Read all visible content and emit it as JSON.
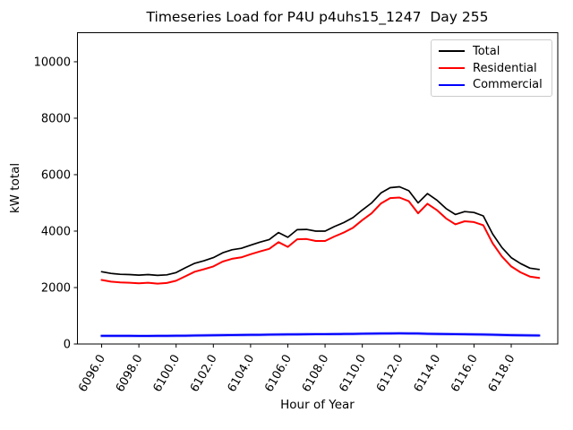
{
  "title": "Timeseries Load for P4U p4uhs15_1247  Day 255",
  "chart_data": {
    "type": "line",
    "title": "Timeseries Load for P4U p4uhs15_1247  Day 255",
    "xlabel": "Hour of Year",
    "ylabel": "kW total",
    "xlim": [
      6094.7,
      6120.5
    ],
    "ylim": [
      0,
      11030
    ],
    "grid": false,
    "legend_position": "upper right",
    "xtick_values": [
      6096,
      6098,
      6100,
      6102,
      6104,
      6106,
      6108,
      6110,
      6112,
      6114,
      6116,
      6118
    ],
    "xtick_labels": [
      "6096.0",
      "6098.0",
      "6100.0",
      "6102.0",
      "6104.0",
      "6106.0",
      "6108.0",
      "6110.0",
      "6112.0",
      "6114.0",
      "6116.0",
      "6118.0"
    ],
    "ytick_values": [
      0,
      2000,
      4000,
      6000,
      8000,
      10000
    ],
    "ytick_labels": [
      "0",
      "2000",
      "4000",
      "6000",
      "8000",
      "10000"
    ],
    "x": [
      6096.0,
      6096.5,
      6097.0,
      6097.5,
      6098.0,
      6098.5,
      6099.0,
      6099.5,
      6100.0,
      6100.5,
      6101.0,
      6101.5,
      6102.0,
      6102.5,
      6103.0,
      6103.5,
      6104.0,
      6104.5,
      6105.0,
      6105.5,
      6106.0,
      6106.5,
      6107.0,
      6107.5,
      6108.0,
      6108.5,
      6109.0,
      6109.5,
      6110.0,
      6110.5,
      6111.0,
      6111.5,
      6112.0,
      6112.5,
      6113.0,
      6113.5,
      6114.0,
      6114.5,
      6115.0,
      6115.5,
      6116.0,
      6116.5,
      6117.0,
      6117.5,
      6118.0,
      6118.5,
      6119.0,
      6119.5
    ],
    "series": [
      {
        "name": "Total",
        "color": "#000000",
        "values": [
          2560,
          2500,
          2470,
          2460,
          2440,
          2460,
          2430,
          2450,
          2530,
          2700,
          2860,
          2950,
          3060,
          3230,
          3340,
          3390,
          3500,
          3610,
          3700,
          3950,
          3780,
          4050,
          4060,
          4000,
          4000,
          4160,
          4300,
          4480,
          4750,
          5000,
          5350,
          5540,
          5570,
          5430,
          5000,
          5330,
          5100,
          4800,
          4590,
          4690,
          4660,
          4540,
          3900,
          3420,
          3060,
          2850,
          2690,
          2640
        ]
      },
      {
        "name": "Residential",
        "color": "#ff0000",
        "values": [
          2270,
          2210,
          2180,
          2170,
          2150,
          2170,
          2140,
          2160,
          2240,
          2400,
          2560,
          2650,
          2750,
          2920,
          3020,
          3070,
          3180,
          3280,
          3370,
          3610,
          3440,
          3710,
          3720,
          3650,
          3650,
          3810,
          3950,
          4120,
          4390,
          4630,
          4980,
          5170,
          5190,
          5060,
          4630,
          4970,
          4750,
          4450,
          4240,
          4350,
          4320,
          4210,
          3570,
          3100,
          2750,
          2540,
          2390,
          2340
        ]
      },
      {
        "name": "Commercial",
        "color": "#0000ff",
        "values": [
          290,
          289,
          288,
          288,
          287,
          287,
          288,
          290,
          292,
          296,
          300,
          305,
          310,
          314,
          318,
          322,
          325,
          328,
          332,
          336,
          340,
          343,
          345,
          348,
          350,
          352,
          355,
          360,
          365,
          368,
          372,
          375,
          378,
          374,
          370,
          362,
          355,
          352,
          350,
          345,
          340,
          335,
          330,
          322,
          315,
          310,
          305,
          300
        ]
      }
    ]
  }
}
